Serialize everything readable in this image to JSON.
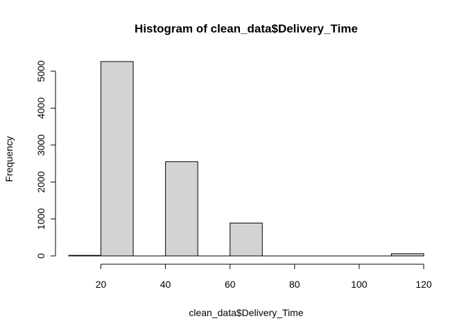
{
  "chart_data": {
    "type": "bar",
    "title": "Histogram of clean_data$Delivery_Time",
    "xlabel": "clean_data$Delivery_Time",
    "ylabel": "Frequency",
    "bin_width": 10,
    "bins": [
      {
        "from": 10,
        "to": 20,
        "count": 15
      },
      {
        "from": 20,
        "to": 30,
        "count": 5260
      },
      {
        "from": 30,
        "to": 40,
        "count": 0
      },
      {
        "from": 40,
        "to": 50,
        "count": 2550
      },
      {
        "from": 50,
        "to": 60,
        "count": 0
      },
      {
        "from": 60,
        "to": 70,
        "count": 890
      },
      {
        "from": 70,
        "to": 80,
        "count": 0
      },
      {
        "from": 80,
        "to": 90,
        "count": 0
      },
      {
        "from": 90,
        "to": 100,
        "count": 0
      },
      {
        "from": 100,
        "to": 110,
        "count": 0
      },
      {
        "from": 110,
        "to": 120,
        "count": 60
      }
    ],
    "xlim": [
      10,
      120
    ],
    "ylim": [
      0,
      5260
    ],
    "x_ticks": [
      20,
      40,
      60,
      80,
      100,
      120
    ],
    "y_ticks": [
      0,
      1000,
      2000,
      3000,
      4000,
      5000
    ],
    "bar_color": "#d3d3d3",
    "grid": false
  }
}
